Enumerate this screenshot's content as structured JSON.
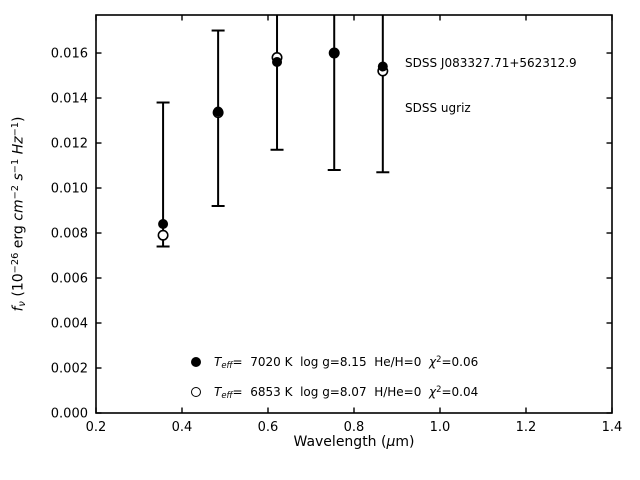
{
  "figure": {
    "background": "#ffffff",
    "ink_color": "#000000"
  },
  "annotation": {
    "line1": "SDSS J083327.71+562312.9",
    "line2": "SDSS ugriz"
  },
  "axes": {
    "xlabel": {
      "prefix": "Wavelength (",
      "mu": "μ",
      "suffix": "m)"
    },
    "ylabel": {
      "f": "f",
      "nu": "ν",
      "mid1": " (10",
      "sup26": "−26",
      "erg": " erg ",
      "cm": "cm",
      "sup2": "−2",
      "sp1": " ",
      "s": "s",
      "sup1a": "−1",
      "sp2": " ",
      "hz": "Hz",
      "sup1b": "−1",
      "close": ")"
    }
  },
  "legend": {
    "rows": [
      {
        "marker": "filled-circle",
        "T": "T",
        "eff": "eff",
        "body": "=  7020 K  log g=8.15  He/H=0  ",
        "chi": "χ",
        "chi_sup": "2",
        "chi_val": "=0.06"
      },
      {
        "marker": "open-circle",
        "T": "T",
        "eff": "eff",
        "body": "=  6853 K  log g=8.07  H/He=0  ",
        "chi": "χ",
        "chi_sup": "2",
        "chi_val": "=0.04"
      }
    ]
  },
  "chart_data": {
    "type": "scatter",
    "title": "",
    "xlabel": "Wavelength (μm)",
    "ylabel": "f_ν (10⁻²⁶ erg cm⁻² s⁻¹ Hz⁻¹)",
    "xlim": [
      0.2,
      1.4
    ],
    "ylim": [
      0.0,
      0.01769
    ],
    "grid": false,
    "tick_direction": "in",
    "legend_position": "inside lower-left",
    "xticks": {
      "values": [
        0.2,
        0.4,
        0.6,
        0.8,
        1.0,
        1.2,
        1.4
      ],
      "labels": [
        "0.2",
        "0.4",
        "0.6",
        "0.8",
        "1.0",
        "1.2",
        "1.4"
      ]
    },
    "yticks": {
      "values": [
        0.0,
        0.002,
        0.004,
        0.006,
        0.008,
        0.01,
        0.012,
        0.014,
        0.016
      ],
      "labels": [
        "0.000",
        "0.002",
        "0.004",
        "0.006",
        "0.008",
        "0.010",
        "0.012",
        "0.014",
        "0.016"
      ]
    },
    "x": [
      0.356,
      0.484,
      0.621,
      0.754,
      0.867
    ],
    "series": [
      {
        "name": "Teff= 7020 K  log g=8.15  He/H=0  χ2=0.06",
        "marker": "filled-circle",
        "values": [
          0.0084,
          0.0134,
          0.0156,
          0.016,
          0.0154
        ]
      },
      {
        "name": "Teff= 6853 K  log g=8.07  H/He=0  χ2=0.04",
        "marker": "open-circle",
        "values": [
          0.0079,
          0.01335,
          0.0158,
          0.016,
          0.0152
        ]
      }
    ],
    "errorbars": {
      "low": [
        0.0074,
        0.0092,
        0.0117,
        0.0108,
        0.0107
      ],
      "high": [
        0.0138,
        0.017,
        null,
        null,
        null
      ],
      "note": "null high = error bar clipped at top axis"
    }
  }
}
